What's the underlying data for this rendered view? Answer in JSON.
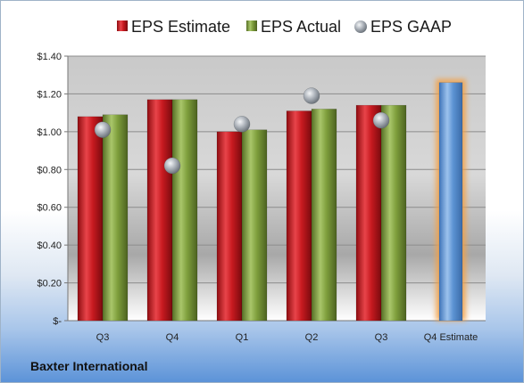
{
  "company": "Baxter International",
  "chart_data": {
    "type": "bar",
    "categories": [
      "Q3",
      "Q4",
      "Q1",
      "Q2",
      "Q3",
      "Q4 Estimate"
    ],
    "series": [
      {
        "name": "EPS Estimate",
        "values": [
          1.08,
          1.17,
          1.0,
          1.11,
          1.14,
          null
        ],
        "color": "#c0121a"
      },
      {
        "name": "EPS Actual",
        "values": [
          1.09,
          1.17,
          1.01,
          1.12,
          1.14,
          null
        ],
        "color": "#7a9a3a"
      },
      {
        "name": "EPS GAAP",
        "type": "scatter",
        "values": [
          1.01,
          0.82,
          1.04,
          1.19,
          1.06,
          null
        ],
        "color": "#a7adb5"
      }
    ],
    "projection": {
      "category": "Q4 Estimate",
      "value": 1.26,
      "color": "#5b93d3",
      "glow": "#f3a24a"
    },
    "ylim": [
      0,
      1.4
    ],
    "yticks": [
      0,
      0.2,
      0.4,
      0.6,
      0.8,
      1.0,
      1.2,
      1.4
    ],
    "ytick_labels": [
      "$-",
      "$0.20",
      "$0.40",
      "$0.60",
      "$0.80",
      "$1.00",
      "$1.20",
      "$1.40"
    ],
    "grid": true,
    "legend_position": "top"
  }
}
